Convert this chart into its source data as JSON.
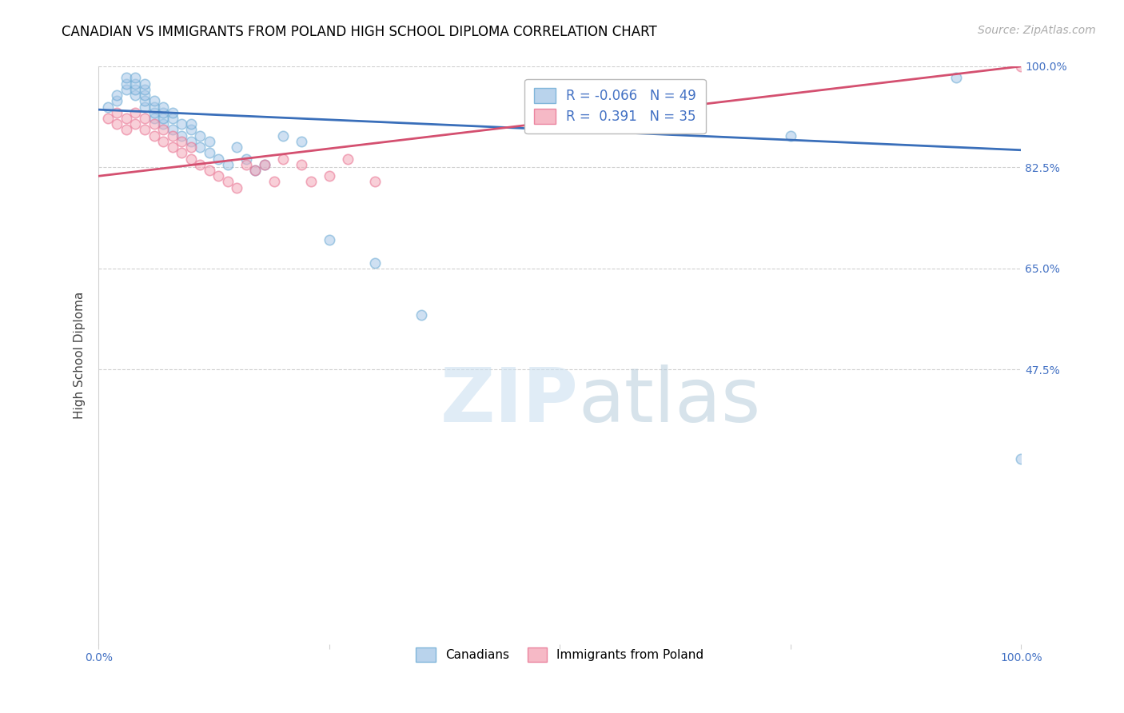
{
  "title": "CANADIAN VS IMMIGRANTS FROM POLAND HIGH SCHOOL DIPLOMA CORRELATION CHART",
  "source": "Source: ZipAtlas.com",
  "ylabel": "High School Diploma",
  "watermark_zip": "ZIP",
  "watermark_atlas": "atlas",
  "xlim": [
    0.0,
    1.0
  ],
  "ylim": [
    0.0,
    1.0
  ],
  "ytick_labels": [
    "47.5%",
    "65.0%",
    "82.5%",
    "100.0%"
  ],
  "ytick_values": [
    0.475,
    0.65,
    0.825,
    1.0
  ],
  "legend_r_blue": "-0.066",
  "legend_n_blue": "49",
  "legend_r_pink": "0.391",
  "legend_n_pink": "35",
  "blue_color": "#a8c8e8",
  "blue_edge_color": "#6aaad4",
  "pink_color": "#f4a8b8",
  "pink_edge_color": "#e87090",
  "blue_line_color": "#3a6fba",
  "pink_line_color": "#d45070",
  "canadians_x": [
    0.01,
    0.02,
    0.02,
    0.03,
    0.03,
    0.03,
    0.04,
    0.04,
    0.04,
    0.04,
    0.05,
    0.05,
    0.05,
    0.05,
    0.05,
    0.06,
    0.06,
    0.06,
    0.06,
    0.07,
    0.07,
    0.07,
    0.07,
    0.08,
    0.08,
    0.08,
    0.09,
    0.09,
    0.1,
    0.1,
    0.1,
    0.11,
    0.11,
    0.12,
    0.12,
    0.13,
    0.14,
    0.15,
    0.16,
    0.17,
    0.18,
    0.2,
    0.22,
    0.25,
    0.3,
    0.35,
    0.75,
    0.93,
    1.0
  ],
  "canadians_y": [
    0.93,
    0.94,
    0.95,
    0.96,
    0.97,
    0.98,
    0.95,
    0.96,
    0.97,
    0.98,
    0.93,
    0.94,
    0.95,
    0.96,
    0.97,
    0.91,
    0.92,
    0.93,
    0.94,
    0.9,
    0.91,
    0.92,
    0.93,
    0.89,
    0.91,
    0.92,
    0.88,
    0.9,
    0.87,
    0.89,
    0.9,
    0.86,
    0.88,
    0.85,
    0.87,
    0.84,
    0.83,
    0.86,
    0.84,
    0.82,
    0.83,
    0.88,
    0.87,
    0.7,
    0.66,
    0.57,
    0.88,
    0.98,
    0.32
  ],
  "poland_x": [
    0.01,
    0.02,
    0.02,
    0.03,
    0.03,
    0.04,
    0.04,
    0.05,
    0.05,
    0.06,
    0.06,
    0.07,
    0.07,
    0.08,
    0.08,
    0.09,
    0.09,
    0.1,
    0.1,
    0.11,
    0.12,
    0.13,
    0.14,
    0.15,
    0.16,
    0.17,
    0.18,
    0.19,
    0.2,
    0.22,
    0.23,
    0.25,
    0.27,
    0.3,
    1.0
  ],
  "poland_y": [
    0.91,
    0.92,
    0.9,
    0.91,
    0.89,
    0.92,
    0.9,
    0.91,
    0.89,
    0.9,
    0.88,
    0.89,
    0.87,
    0.88,
    0.86,
    0.87,
    0.85,
    0.86,
    0.84,
    0.83,
    0.82,
    0.81,
    0.8,
    0.79,
    0.83,
    0.82,
    0.83,
    0.8,
    0.84,
    0.83,
    0.8,
    0.81,
    0.84,
    0.8,
    1.0
  ],
  "blue_trendline_x": [
    0.0,
    1.0
  ],
  "blue_trendline_y": [
    0.925,
    0.855
  ],
  "pink_trendline_x": [
    0.0,
    1.0
  ],
  "pink_trendline_y": [
    0.81,
    1.0
  ],
  "background_color": "#ffffff",
  "grid_color": "#d0d0d0",
  "tick_color": "#4472c4",
  "title_color": "#000000",
  "title_fontsize": 12,
  "label_fontsize": 11,
  "tick_fontsize": 10,
  "legend_fontsize": 12,
  "source_fontsize": 10,
  "marker_size": 80,
  "marker_alpha": 0.55,
  "line_width": 2.0
}
